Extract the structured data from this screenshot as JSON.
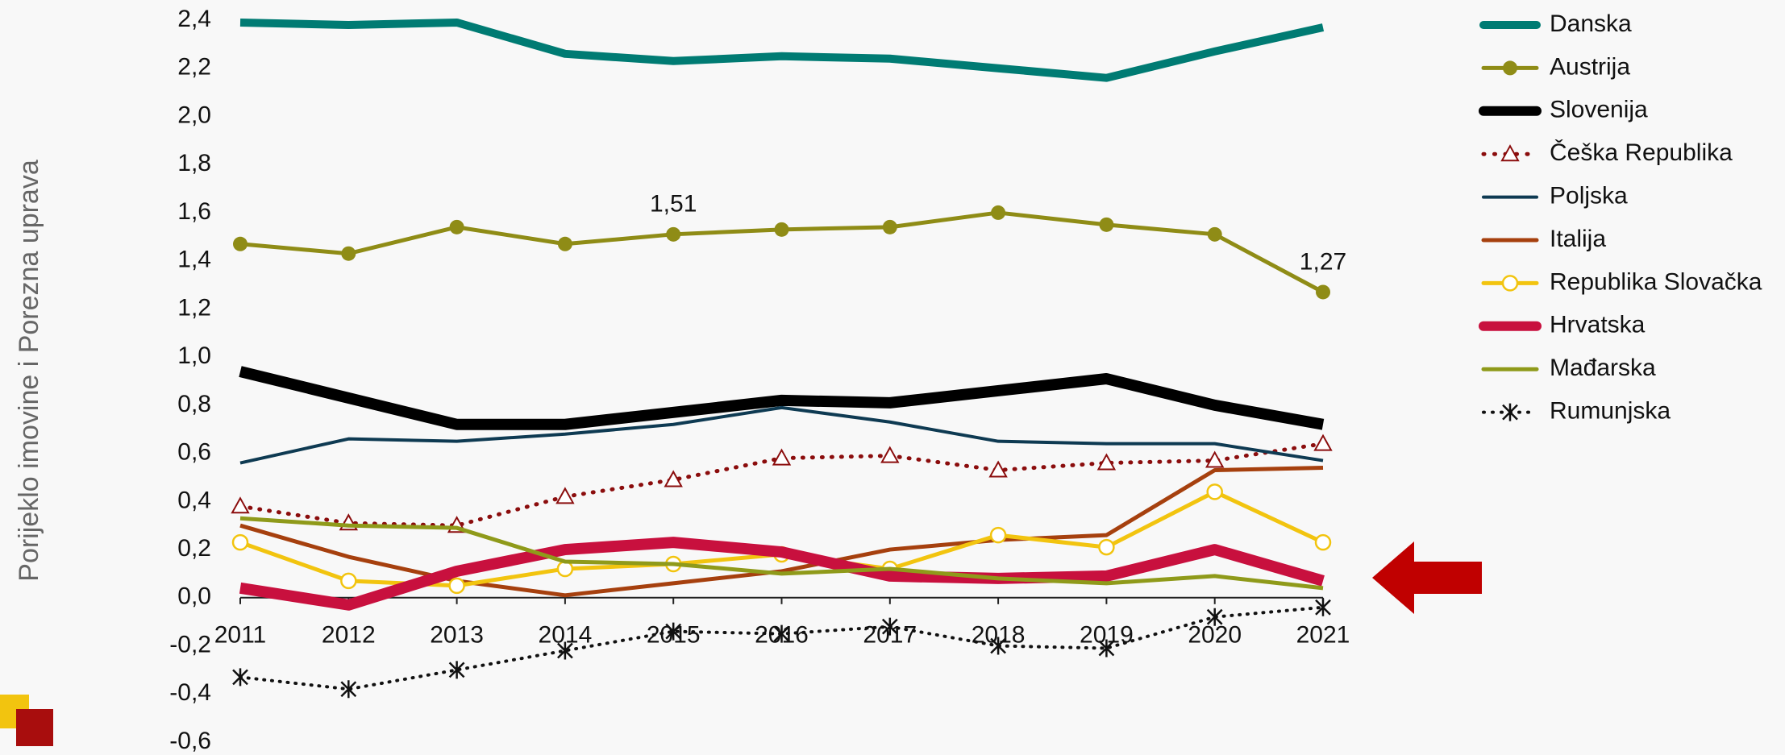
{
  "chart_data": {
    "type": "line",
    "y_label": "Porijeklo imovine i Porezna uprava",
    "categories": [
      "2011",
      "2012",
      "2013",
      "2014",
      "2015",
      "2016",
      "2017",
      "2018",
      "2019",
      "2020",
      "2021"
    ],
    "ylim": [
      -0.6,
      2.4
    ],
    "yticks": [
      {
        "value": 2.4,
        "label": "2,4"
      },
      {
        "value": 2.2,
        "label": "2,2"
      },
      {
        "value": 2.0,
        "label": "2,0"
      },
      {
        "value": 1.8,
        "label": "1,8"
      },
      {
        "value": 1.6,
        "label": "1,6"
      },
      {
        "value": 1.4,
        "label": "1,4"
      },
      {
        "value": 1.2,
        "label": "1,2"
      },
      {
        "value": 1.0,
        "label": "1,0"
      },
      {
        "value": 0.8,
        "label": "0,8"
      },
      {
        "value": 0.6,
        "label": "0,6"
      },
      {
        "value": 0.4,
        "label": "0,4"
      },
      {
        "value": 0.2,
        "label": "0,2"
      },
      {
        "value": 0,
        "label": "0,0"
      },
      {
        "value": -0.2,
        "label": "-0,2"
      },
      {
        "value": -0.4,
        "label": "-0,4"
      },
      {
        "value": -0.6,
        "label": "-0,6"
      }
    ],
    "series": [
      {
        "name": "Danska",
        "color": "#007b73",
        "width": 10,
        "values": [
          2.39,
          2.38,
          2.39,
          2.26,
          2.23,
          2.25,
          2.24,
          2.2,
          2.16,
          2.27,
          2.37
        ]
      },
      {
        "name": "Austrija",
        "color": "#8f8c16",
        "width": 5,
        "marker": "dot",
        "values": [
          1.47,
          1.43,
          1.54,
          1.47,
          1.51,
          1.53,
          1.54,
          1.6,
          1.55,
          1.51,
          1.27
        ],
        "value_labels": [
          null,
          null,
          null,
          null,
          "1,51",
          null,
          null,
          null,
          null,
          null,
          "1,27"
        ]
      },
      {
        "name": "Slovenija",
        "color": "#000000",
        "width": 14,
        "values": [
          0.94,
          0.83,
          0.72,
          0.72,
          0.77,
          0.82,
          0.81,
          0.86,
          0.91,
          0.8,
          0.72
        ]
      },
      {
        "name": "Češka Republika",
        "color": "#8b0d0d",
        "width": 5,
        "dash": "dot",
        "marker": "triangle",
        "values": [
          0.38,
          0.31,
          0.3,
          0.42,
          0.49,
          0.58,
          0.59,
          0.53,
          0.56,
          0.57,
          0.64
        ]
      },
      {
        "name": "Poljska",
        "color": "#0e3a52",
        "width": 4,
        "values": [
          0.56,
          0.66,
          0.65,
          0.68,
          0.72,
          0.79,
          0.73,
          0.65,
          0.64,
          0.64,
          0.57
        ]
      },
      {
        "name": "Italija",
        "color": "#a6400e",
        "width": 5,
        "values": [
          0.3,
          0.17,
          0.07,
          0.01,
          0.06,
          0.11,
          0.2,
          0.24,
          0.26,
          0.53,
          0.54
        ]
      },
      {
        "name": "Republika Slovačka",
        "color": "#f2c40f",
        "width": 5,
        "marker": "circle",
        "values": [
          0.23,
          0.07,
          0.05,
          0.12,
          0.14,
          0.18,
          0.12,
          0.26,
          0.21,
          0.44,
          0.23
        ]
      },
      {
        "name": "Hrvatska",
        "color": "#c8103e",
        "width": 14,
        "values": [
          0.04,
          -0.03,
          0.11,
          0.2,
          0.23,
          0.19,
          0.09,
          0.08,
          0.09,
          0.2,
          0.07
        ]
      },
      {
        "name": "Mađarska",
        "color": "#8f9a1a",
        "width": 5,
        "values": [
          0.33,
          0.3,
          0.29,
          0.15,
          0.14,
          0.1,
          0.12,
          0.08,
          0.06,
          0.09,
          0.04
        ]
      },
      {
        "name": "Rumunjska",
        "color": "#111111",
        "width": 4,
        "dash": "dot",
        "marker": "star",
        "values": [
          -0.33,
          -0.38,
          -0.3,
          -0.22,
          -0.14,
          -0.15,
          -0.12,
          -0.2,
          -0.21,
          -0.08,
          -0.04
        ]
      }
    ]
  }
}
